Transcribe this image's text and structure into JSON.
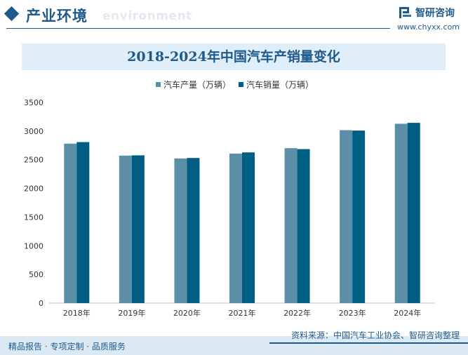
{
  "header": {
    "title": "产业环境",
    "subtitle": "environment"
  },
  "brand": {
    "name": "智研咨询",
    "url": "www.chyxx.com"
  },
  "footer": {
    "tagline": "精品报告 · 专项定制 · 品质服务",
    "source": "资料来源：中国汽车工业协会、智研咨询整理"
  },
  "colors": {
    "accent": "#1f5a8a",
    "production": "#5b8fa8",
    "sales": "#005e85"
  },
  "chart_data": {
    "type": "bar",
    "title": "2018-2024年中国汽车产销量变化",
    "categories": [
      "2018年",
      "2019年",
      "2020年",
      "2021年",
      "2022年",
      "2023年",
      "2024年"
    ],
    "series": [
      {
        "name": "汽车产量（万辆）",
        "values": [
          2781,
          2572,
          2523,
          2608,
          2702,
          3016,
          3128
        ],
        "color": "#5b8fa8"
      },
      {
        "name": "汽车销量（万辆）",
        "values": [
          2808,
          2577,
          2531,
          2628,
          2686,
          3009,
          3144
        ],
        "color": "#005e85"
      }
    ],
    "ylim": [
      0,
      3500
    ],
    "yticks": [
      0,
      500,
      1000,
      1500,
      2000,
      2500,
      3000,
      3500
    ],
    "xlabel": "",
    "ylabel": "",
    "grid": false,
    "legend_position": "top-center"
  }
}
